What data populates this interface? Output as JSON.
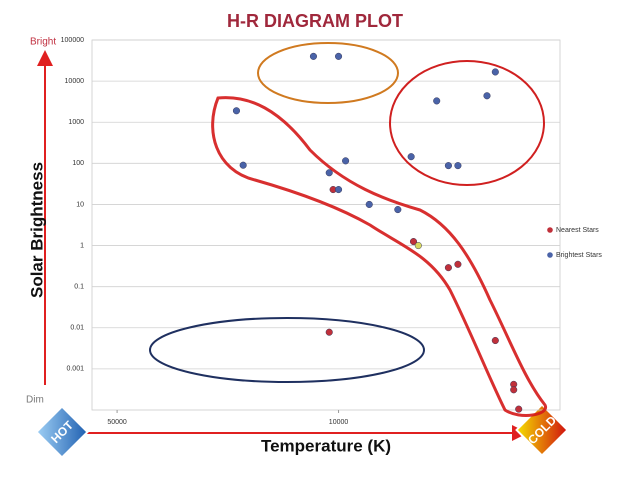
{
  "chart_data": {
    "type": "scatter",
    "title": "H-R DIAGRAM PLOT",
    "x_label": "Temperature (K)",
    "y_label": "Solar Brightness",
    "annotations": {
      "bright": "Bright",
      "dim": "Dim",
      "hot": "HOT",
      "cold": "COLD"
    },
    "x_scale": "log",
    "y_scale": "log",
    "xlim": [
      60000,
      2000
    ],
    "ylim": [
      0.0001,
      100000
    ],
    "xticks": [
      50000,
      10000
    ],
    "yticks": [
      100000,
      10000,
      1000,
      100,
      10,
      1,
      0.1,
      0.01,
      0.001
    ],
    "grid": true,
    "legend": "right",
    "series": [
      {
        "name": "Nearest Stars",
        "color": "#c0303a",
        "x": [
          10400,
          5800,
          5600,
          4500,
          4200,
          3200,
          2800,
          2800,
          2700,
          10700
        ],
        "values": [
          23,
          1.25,
          1,
          0.29,
          0.35,
          0.0049,
          0.00042,
          0.00031,
          0.000105,
          0.0078
        ],
        "point_colors": [
          "#c0303a",
          "#c0303a",
          "#d8d860",
          "#c0303a",
          "#c0303a",
          "#c0303a",
          "#c0303a",
          "#c0303a",
          "#c0303a",
          "#c0303a"
        ]
      },
      {
        "name": "Brightest Stars",
        "color": "#4a63a8",
        "x": [
          12000,
          10000,
          21000,
          20000,
          10700,
          9500,
          10000,
          8000,
          6500,
          5900,
          4900,
          4500,
          4200,
          3400,
          3200
        ],
        "values": [
          40000,
          40000,
          1900,
          90,
          59,
          115,
          23,
          10,
          7.5,
          145,
          3300,
          88,
          88,
          4400,
          16700
        ]
      }
    ]
  }
}
